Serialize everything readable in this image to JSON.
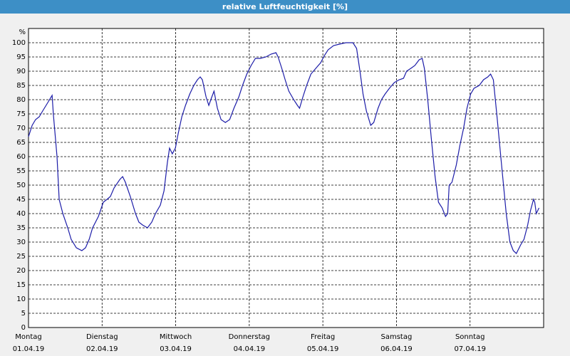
{
  "chart_data": {
    "type": "line",
    "title": "relative Luftfeuchtigkeit [%]",
    "y_unit": "%",
    "x": [
      0,
      1.2,
      2.3,
      3.5,
      4.6,
      6.3,
      7.7,
      8.1,
      9.3,
      10.0,
      11.2,
      12.8,
      13.9,
      15.6,
      17.4,
      18.6,
      19.8,
      20.9,
      22.8,
      24.4,
      25.6,
      26.7,
      27.9,
      29.8,
      30.7,
      31.6,
      33.2,
      34.9,
      36.0,
      37.2,
      38.8,
      40.2,
      41.4,
      43.0,
      44.2,
      45.3,
      46.0,
      46.9,
      47.9,
      48.8,
      50.0,
      51.2,
      52.6,
      53.9,
      55.1,
      56.0,
      56.7,
      57.9,
      58.8,
      59.8,
      60.5,
      61.6,
      62.8,
      64.2,
      65.6,
      67.0,
      68.6,
      69.8,
      71.2,
      72.6,
      74.0,
      75.6,
      77.4,
      79.1,
      80.7,
      81.4,
      82.6,
      83.7,
      84.9,
      86.5,
      87.7,
      88.4,
      89.5,
      90.7,
      92.1,
      93.7,
      95.3,
      96.5,
      97.7,
      99.5,
      101.4,
      103.5,
      105.8,
      107.0,
      108.1,
      109.1,
      110.2,
      111.6,
      112.6,
      114.0,
      115.1,
      116.3,
      117.7,
      119.3,
      120.9,
      122.3,
      123.3,
      124.7,
      126.0,
      127.4,
      128.4,
      129.1,
      130.2,
      131.4,
      132.6,
      133.7,
      134.9,
      136.0,
      136.7,
      137.2,
      138.1,
      139.5,
      140.7,
      141.9,
      143.0,
      144.2,
      145.3,
      147.0,
      148.4,
      149.8,
      150.7,
      151.6,
      152.8,
      154.2,
      155.8,
      157.0,
      158.1,
      159.1,
      160.5,
      161.6,
      162.8,
      163.7,
      164.7,
      165.1,
      165.6,
      166.5
    ],
    "series": [
      {
        "color": "#1c1ca8",
        "values": [
          67,
          71,
          73,
          74,
          76,
          79,
          81.5,
          75,
          60,
          45,
          40,
          35,
          31,
          28,
          27,
          28,
          31,
          35,
          39,
          44,
          45,
          46,
          49,
          52,
          53,
          51,
          46,
          40,
          37,
          36,
          35,
          37,
          40,
          43,
          48,
          58,
          63,
          61,
          63,
          68,
          74,
          78,
          82,
          85,
          87,
          88,
          87,
          81,
          78,
          81,
          83,
          77,
          73,
          72,
          73,
          77,
          81,
          85,
          89,
          92,
          94.5,
          94.5,
          95,
          96,
          96.5,
          95,
          91,
          87,
          83,
          80,
          78,
          77,
          81,
          85,
          89,
          91,
          93,
          95.5,
          97.5,
          99,
          99.5,
          100,
          100,
          98,
          90,
          82,
          76,
          71,
          72,
          77,
          80,
          82,
          84,
          86,
          87,
          87.5,
          90,
          91,
          92,
          94,
          94.5,
          91,
          80,
          66,
          53,
          44,
          42,
          39,
          40,
          50,
          51,
          57,
          64,
          70,
          77,
          82,
          84,
          85,
          87,
          88,
          89,
          87,
          74,
          58,
          40,
          30,
          27,
          26,
          29,
          31,
          36,
          41,
          45,
          44,
          40,
          42
        ]
      }
    ],
    "xlim": [
      0,
      168
    ],
    "xticks": [
      0,
      24,
      48,
      72,
      96,
      120,
      144
    ],
    "xtick_labels": [
      {
        "day": "Montag",
        "date": "01.04.19"
      },
      {
        "day": "Dienstag",
        "date": "02.04.19"
      },
      {
        "day": "Mittwoch",
        "date": "03.04.19"
      },
      {
        "day": "Donnerstag",
        "date": "04.04.19"
      },
      {
        "day": "Freitag",
        "date": "05.04.19"
      },
      {
        "day": "Samstag",
        "date": "06.04.19"
      },
      {
        "day": "Sonntag",
        "date": "07.04.19"
      }
    ],
    "ylim": [
      0,
      105
    ],
    "yticks": [
      0,
      5,
      10,
      15,
      20,
      25,
      30,
      35,
      40,
      45,
      50,
      55,
      60,
      65,
      70,
      75,
      80,
      85,
      90,
      95,
      100
    ],
    "grid": true
  }
}
